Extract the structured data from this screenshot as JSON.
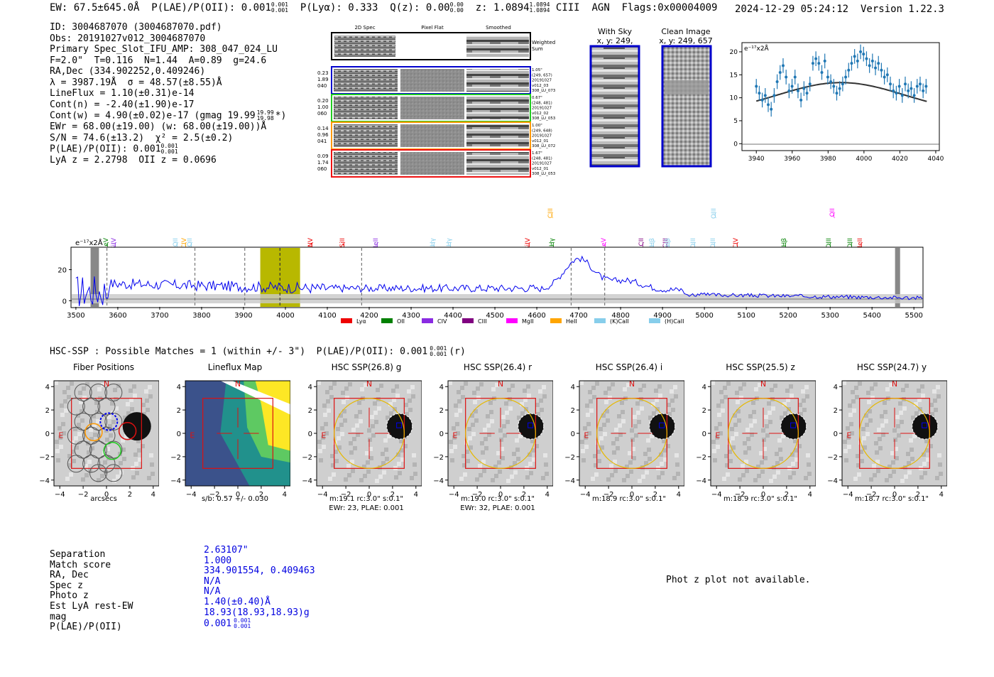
{
  "header": {
    "ew": "EW: 67.5±645.0Å",
    "plae": "P(LAE)/P(OII): 0.001",
    "plae_sup": "0.001",
    "plae_sub": "0.001",
    "plya": "P(Lyα): 0.333",
    "qz": "Q(z): 0.00",
    "qz_sup": "0.00",
    "qz_sub": "0.00",
    "z": "z: 1.0894",
    "z_sup": "1.0894",
    "z_sub": "1.0894",
    "line": "CIII",
    "class": "AGN",
    "flags": "Flags:0x00004009",
    "datetime": "2024-12-29 05:24:12",
    "version": "Version 1.22.3"
  },
  "info": {
    "id": "ID: 3004687070 (3004687070.pdf)",
    "obs": "Obs: 20191027v012_3004687070",
    "primary": "Primary Spec_Slot_IFU_AMP: 308_047_024_LU",
    "fparams": "F=2.0\"  T=0.116  N=1.44  A=0.89  g=24.6",
    "radec": "RA,Dec (334.902252,0.409246)",
    "lambda": "λ = 3987.19Å  σ = 48.57(±8.55)Å",
    "lineflux": "LineFlux = 1.10(±0.31)e-14",
    "contn": "Cont(n) = -2.40(±1.90)e-17",
    "contw": "Cont(w) = 4.90(±0.02)e-17 (gmag 19.99",
    "contw_sup": "19.99",
    "contw_sub": "19.98",
    "contw_end": "*)",
    "ewr": "EWr = 68.00(±19.00) (w: 68.00(±19.00))Å",
    "sn": "S/N = 74.6(±13.2)  χ² = 2.5(±0.2)",
    "plae": "P(LAE)/P(OII): 0.001",
    "plae_sup": "0.001",
    "plae_sub": "0.001",
    "lya": "LyA z = 2.2798  OII z = 0.0696"
  },
  "spec2d": {
    "headers": [
      "2D Spec",
      "Pixel Flat",
      "Smoothed"
    ],
    "weighted": "Weighted Sum",
    "rows": [
      {
        "l1": "0.23",
        "l2": "1.89",
        "l3": "040",
        "color": "#0000cc",
        "n1": "1.05\"",
        "n2": "(249, 657)",
        "n3": "20191027",
        "n4": "v012_03",
        "n5": "308_LU_073"
      },
      {
        "l1": "0.20",
        "l2": "1.00",
        "l3": "060",
        "color": "#22cc22",
        "n1": "0.67\"",
        "n2": "(248, 481)",
        "n3": "20191027",
        "n4": "v012_02",
        "n5": "308_LU_053"
      },
      {
        "l1": "0.14",
        "l2": "0.96",
        "l3": "041",
        "color": "#ff9900",
        "n1": "1.00\"",
        "n2": "(249, 648)",
        "n3": "20191027",
        "n4": "v012_01",
        "n5": "308_LU_072"
      },
      {
        "l1": "0.09",
        "l2": "1.74",
        "l3": "060",
        "color": "#ee1111",
        "n1": "1.67\"",
        "n2": "(248, 481)",
        "n3": "20191027",
        "n4": "v012_01",
        "n5": "308_LU_053"
      }
    ]
  },
  "sky": {
    "title1": "With Sky",
    "title2": "x, y: 249, 657"
  },
  "clean": {
    "title1": "Clean Image",
    "title2": "x, y: 249, 657"
  },
  "fit_plot": {
    "unit": "e⁻¹⁷x2Å",
    "xticks": [
      "3940",
      "3960",
      "3980",
      "4000",
      "4020",
      "4040"
    ],
    "yticks": [
      "0",
      "5",
      "10",
      "15",
      "20"
    ]
  },
  "spectrum": {
    "unit": "e⁻¹⁷x2Å",
    "xticks": [
      "3500",
      "3600",
      "3700",
      "3800",
      "3900",
      "4000",
      "4100",
      "4200",
      "4300",
      "4400",
      "4500",
      "4600",
      "4700",
      "4800",
      "4900",
      "5000",
      "5100",
      "5200",
      "5300",
      "5400",
      "5500"
    ],
    "yticks": [
      "0",
      "20"
    ],
    "legend": [
      {
        "label": "Lyα",
        "color": "#ee0000"
      },
      {
        "label": "OII",
        "color": "#008000"
      },
      {
        "label": "CIV",
        "color": "#8a2be2"
      },
      {
        "label": "CIII",
        "color": "#800080"
      },
      {
        "label": "MgII",
        "color": "#ff00ff"
      },
      {
        "label": "HeII",
        "color": "#ffa500"
      },
      {
        "label": "(K)CaII",
        "color": "#87ceeb"
      },
      {
        "label": "(H)CaII",
        "color": "#87ceeb"
      }
    ],
    "line_labels": [
      {
        "t": "NeV",
        "c": "#008000"
      },
      {
        "t": "SiIV",
        "c": "#8a2be2"
      },
      {
        "t": "OII",
        "c": "#87ceeb"
      },
      {
        "t": "CIV",
        "c": "#ffa500"
      },
      {
        "t": "OII",
        "c": "#87ceeb"
      },
      {
        "t": "NV",
        "c": "#ee0000"
      },
      {
        "t": "SiII",
        "c": "#ee0000"
      },
      {
        "t": "HeII",
        "c": "#8a2be2"
      },
      {
        "t": "Hγ",
        "c": "#87ceeb"
      },
      {
        "t": "Hγ",
        "c": "#87ceeb"
      },
      {
        "t": "SiIV",
        "c": "#ee0000"
      },
      {
        "t": "CIII",
        "c": "#ffa500"
      },
      {
        "t": "Hγ",
        "c": "#008000"
      },
      {
        "t": "NeV",
        "c": "#ff00ff"
      },
      {
        "t": "CII",
        "c": "#800080"
      },
      {
        "t": "Hβ",
        "c": "#87ceeb"
      },
      {
        "t": "CIII",
        "c": "#800080"
      },
      {
        "t": "Hβ",
        "c": "#87ceeb"
      },
      {
        "t": "OIII",
        "c": "#87ceeb"
      },
      {
        "t": "OIII",
        "c": "#87ceeb"
      },
      {
        "t": "OIII",
        "c": "#87ceeb"
      },
      {
        "t": "CIV",
        "c": "#ee0000"
      },
      {
        "t": "Hβ",
        "c": "#008000"
      },
      {
        "t": "OIII",
        "c": "#008000"
      },
      {
        "t": "OII",
        "c": "#ff00ff"
      },
      {
        "t": "OIII",
        "c": "#008000"
      },
      {
        "t": "HeII",
        "c": "#ee0000"
      }
    ]
  },
  "hsc": {
    "text": "HSC-SSP : Possible Matches = 1 (within +/- 3\")  P(LAE)/P(OII): 0.001",
    "sup": "0.001",
    "sub": "0.001",
    "band": "(r)"
  },
  "cutouts": [
    {
      "title": "Fiber Positions",
      "cap1": "arcsecs",
      "cap2": ""
    },
    {
      "title": "Lineflux Map",
      "cap1": "s/b: 0.57 +/- 0.030",
      "cap2": ""
    },
    {
      "title": "HSC SSP(26.8) g",
      "cap1": "m:19.1 rc:3.0\"  s:0.1\"",
      "cap2": "EWr: 23, PLAE: 0.001"
    },
    {
      "title": "HSC SSP(26.4) r",
      "cap1": "m:19.0 rc:3.0\"  s:0.1\"",
      "cap2": "EWr: 32, PLAE: 0.001"
    },
    {
      "title": "HSC SSP(26.4) i",
      "cap1": "m:18.9 rc:3.0\"  s:0.1\"",
      "cap2": ""
    },
    {
      "title": "HSC SSP(25.5) z",
      "cap1": "m:18.9 rc:3.0\"  s:0.1\"",
      "cap2": ""
    },
    {
      "title": "HSC SSP(24.7) y",
      "cap1": "m:18.7 rc:3.0\"  s:0.1\"",
      "cap2": ""
    }
  ],
  "cutout_axes": {
    "ticks": [
      "4",
      "2",
      "0",
      "−2",
      "−4"
    ],
    "xticks": [
      "−4",
      "−2",
      "0",
      "2",
      "4"
    ],
    "n": "N",
    "e": "E"
  },
  "match": {
    "labels": [
      "Separation",
      "Match score",
      "RA, Dec",
      "Spec z",
      "Photo z",
      "Est LyA rest-EW",
      "mag",
      "P(LAE)/P(OII)"
    ],
    "values": [
      "2.63107\"",
      "1.000",
      "334.901554, 0.409463",
      "N/A",
      "N/A",
      "1.40(±0.40)Å",
      "18.93(18.93,18.93)g",
      "0.001"
    ],
    "plae_sup": "0.001",
    "plae_sub": "0.001"
  },
  "photz": "Phot z plot not available.",
  "colors": {
    "blue": "#0000cc",
    "line": "#0000ee",
    "olive": "#b8b800",
    "red": "#dd1111",
    "gold": "#e6b800",
    "fitblue": "#1f77b4"
  }
}
